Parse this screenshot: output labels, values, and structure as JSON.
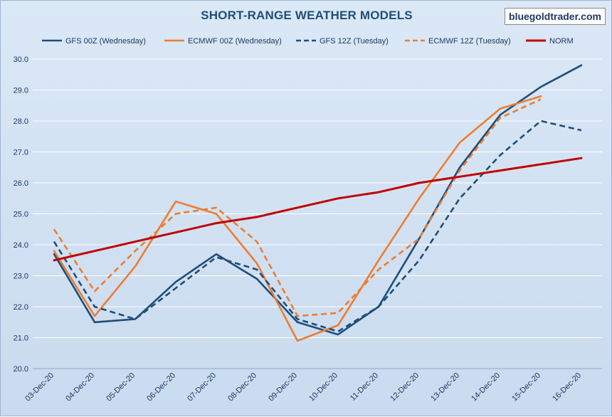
{
  "chart_data": {
    "type": "line",
    "title": "SHORT-RANGE WEATHER MODELS",
    "watermark": "bluegoldtrader.com",
    "xlabel": "",
    "ylabel": "",
    "ylim": [
      20.0,
      30.0
    ],
    "ytick_step": 1.0,
    "y_tick_labels": [
      "20.0",
      "21.0",
      "22.0",
      "23.0",
      "24.0",
      "25.0",
      "26.0",
      "27.0",
      "28.0",
      "29.0",
      "30.0"
    ],
    "grid": true,
    "legend_position": "top",
    "categories": [
      "03-Dec-20",
      "04-Dec-20",
      "05-Dec-20",
      "06-Dec-20",
      "07-Dec-20",
      "08-Dec-20",
      "09-Dec-20",
      "10-Dec-20",
      "11-Dec-20",
      "12-Dec-20",
      "13-Dec-20",
      "14-Dec-20",
      "15-Dec-20",
      "16-Dec-20"
    ],
    "series": [
      {
        "name": "GFS 00Z (Wednesday)",
        "color": "#1f4e79",
        "dash": "solid",
        "values": [
          23.7,
          21.5,
          21.6,
          22.8,
          23.7,
          22.9,
          21.5,
          21.1,
          22.0,
          24.2,
          26.5,
          28.2,
          29.1,
          29.8
        ]
      },
      {
        "name": "ECMWF 00Z (Wednesday)",
        "color": "#ed7d31",
        "dash": "solid",
        "values": [
          23.8,
          21.7,
          23.3,
          25.4,
          25.0,
          23.4,
          20.9,
          21.4,
          23.5,
          25.5,
          27.3,
          28.4,
          28.8,
          null
        ]
      },
      {
        "name": "GFS 12Z (Tuesday)",
        "color": "#1f4e79",
        "dash": "dashed",
        "values": [
          24.1,
          22.0,
          21.6,
          22.6,
          23.6,
          23.2,
          21.6,
          21.2,
          22.0,
          23.5,
          25.5,
          26.9,
          28.0,
          27.7
        ]
      },
      {
        "name": "ECMWF 12Z (Tuesday)",
        "color": "#ed7d31",
        "dash": "dashed",
        "values": [
          24.5,
          22.5,
          23.8,
          25.0,
          25.2,
          24.1,
          21.7,
          21.8,
          23.2,
          24.2,
          26.4,
          28.1,
          28.7,
          null
        ]
      },
      {
        "name": "NORM",
        "color": "#c00000",
        "dash": "solid",
        "values": [
          23.5,
          23.8,
          24.1,
          24.4,
          24.7,
          24.9,
          25.2,
          25.5,
          25.7,
          26.0,
          26.2,
          26.4,
          26.6,
          26.8
        ]
      }
    ]
  }
}
